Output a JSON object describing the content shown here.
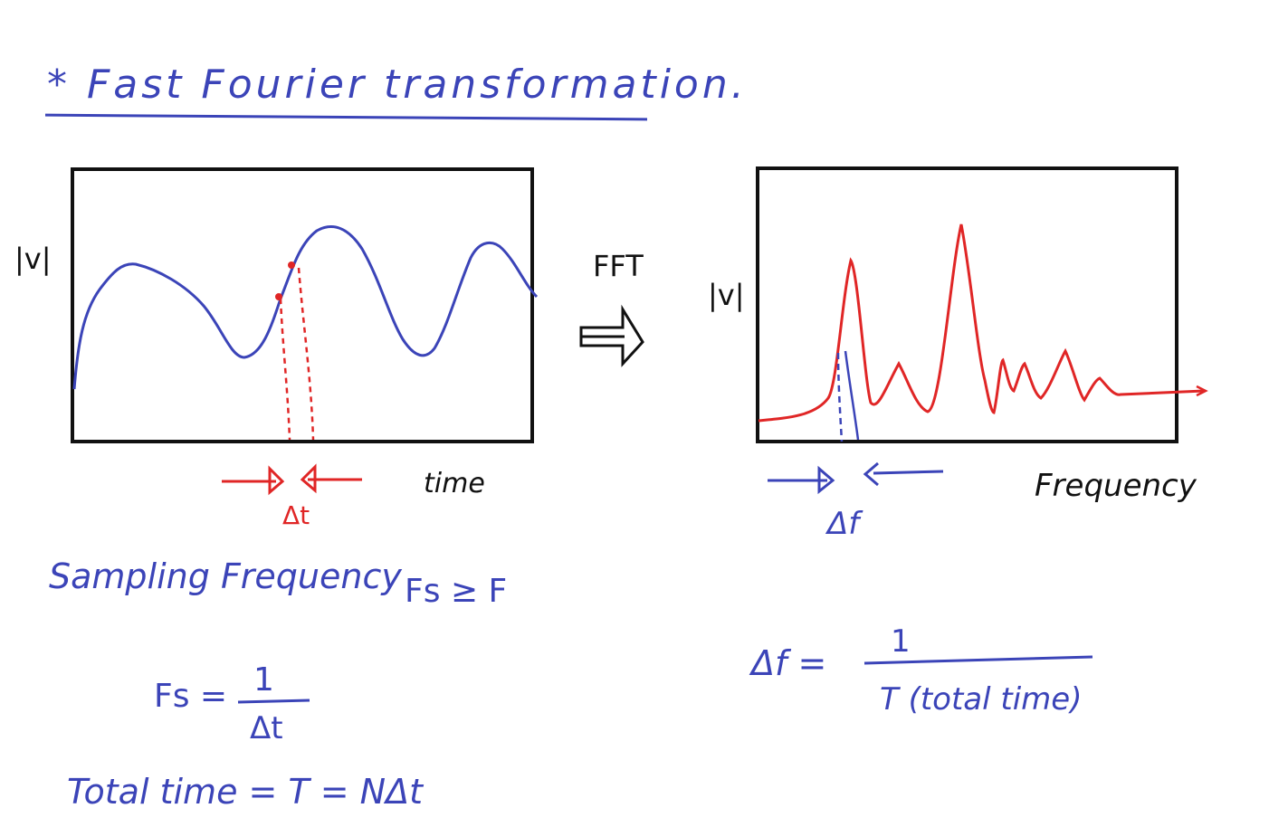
{
  "title": "* Fast Fourier transformation.",
  "time_plot": {
    "ylabel": "|v|",
    "xlabel": "time",
    "step_label": "Δt"
  },
  "transform_label": "FFT",
  "freq_plot": {
    "ylabel": "|v|",
    "xlabel": "Frequency",
    "step_label": "Δf"
  },
  "notes": {
    "sampling_line": "Sampling Frequency",
    "sampling_condition": "Fs ≥ F",
    "fs_lhs": "Fs =",
    "fs_num": "1",
    "fs_den": "Δt",
    "total_time": "Total time = T = NΔt",
    "df_lhs": "Δf =",
    "df_num": "1",
    "df_den": "T (total time)"
  },
  "colors": {
    "ink_blue": "#3b44b8",
    "ink_red": "#e02626",
    "ink_black": "#111111"
  }
}
